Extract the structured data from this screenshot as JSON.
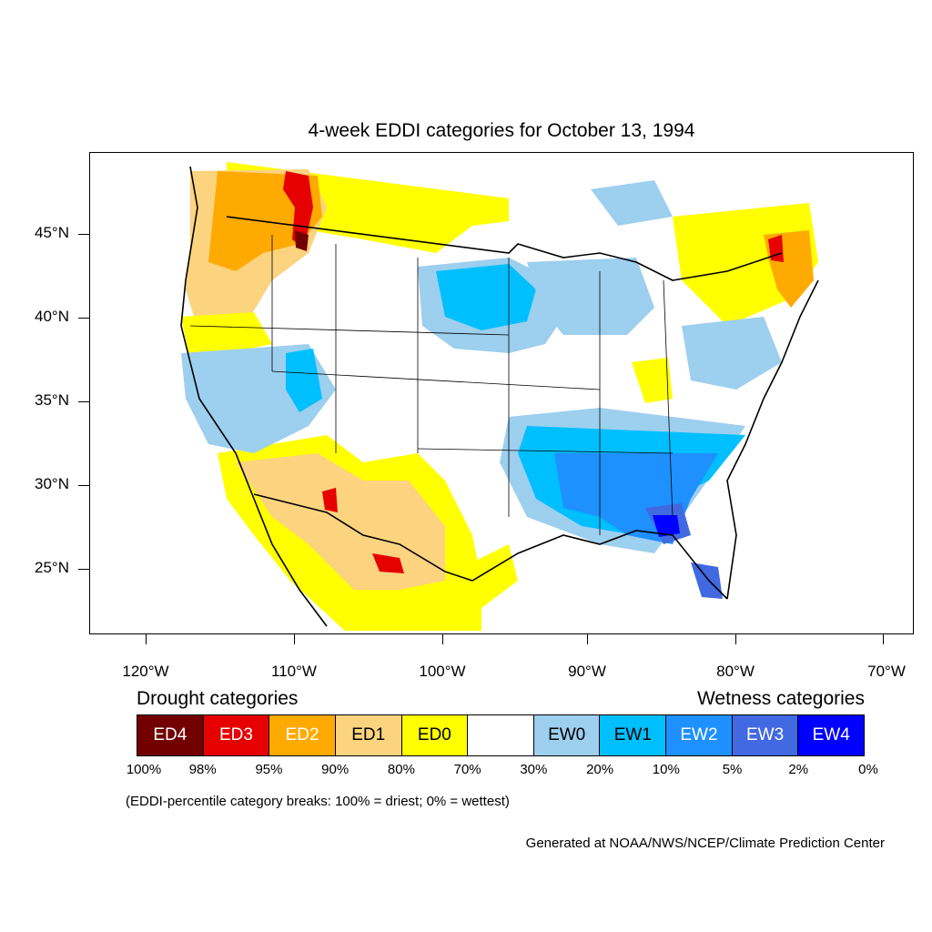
{
  "title": "4-week EDDI categories for October 13, 1994",
  "lat_labels": [
    "45°N",
    "40°N",
    "35°N",
    "30°N",
    "25°N"
  ],
  "lon_labels": [
    "120°W",
    "110°W",
    "100°W",
    "90°W",
    "80°W",
    "70°W"
  ],
  "drought_title": "Drought categories",
  "wetness_title": "Wetness categories",
  "legend": [
    {
      "label": "ED4",
      "color": "#730000",
      "text_color": "#ffffff"
    },
    {
      "label": "ED3",
      "color": "#e60000",
      "text_color": "#ffffff"
    },
    {
      "label": "ED2",
      "color": "#ffaa00",
      "text_color": "#ffffff"
    },
    {
      "label": "ED1",
      "color": "#fcd37f",
      "text_color": "#000000"
    },
    {
      "label": "ED0",
      "color": "#ffff00",
      "text_color": "#000000"
    },
    {
      "label": "",
      "color": "#ffffff",
      "text_color": "#000000"
    },
    {
      "label": "EW0",
      "color": "#9dcfee",
      "text_color": "#000000"
    },
    {
      "label": "EW1",
      "color": "#00bfff",
      "text_color": "#000000"
    },
    {
      "label": "EW2",
      "color": "#1e90ff",
      "text_color": "#ffffff"
    },
    {
      "label": "EW3",
      "color": "#4169e1",
      "text_color": "#ffffff"
    },
    {
      "label": "EW4",
      "color": "#0000ff",
      "text_color": "#ffffff"
    }
  ],
  "percent_breaks": [
    "100%",
    "98%",
    "95%",
    "90%",
    "80%",
    "70%",
    "30%",
    "20%",
    "10%",
    "5%",
    "2%",
    "0%"
  ],
  "note": "(EDDI-percentile category breaks: 100% = driest; 0% = wettest)",
  "credit": "Generated at NOAA/NWS/NCEP/Climate Prediction Center"
}
